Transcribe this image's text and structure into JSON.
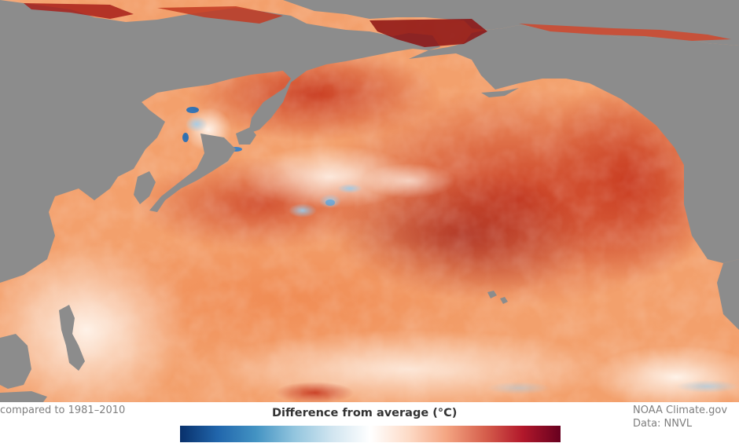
{
  "map": {
    "land_color": "#8c8c8c",
    "ocean_palette": [
      "#08306b",
      "#2166ac",
      "#4393c3",
      "#92c5de",
      "#d1e5f0",
      "#fbfbfb",
      "#fddbc7",
      "#f8ac79",
      "#f4a582",
      "#e0623f",
      "#d6604d",
      "#b2182b",
      "#7f0022"
    ]
  },
  "caption": {
    "period": "compared to 1981–2010"
  },
  "legend": {
    "title": "Difference from average (°C)",
    "colors": [
      "#08306b",
      "#2166ac",
      "#4393c3",
      "#92c5de",
      "#d1e5f0",
      "#ffffff",
      "#fddbc7",
      "#f4a582",
      "#d6604d",
      "#b2182b",
      "#67001f"
    ]
  },
  "credits": {
    "source": "NOAA Climate.gov",
    "data": "Data: NNVL"
  }
}
